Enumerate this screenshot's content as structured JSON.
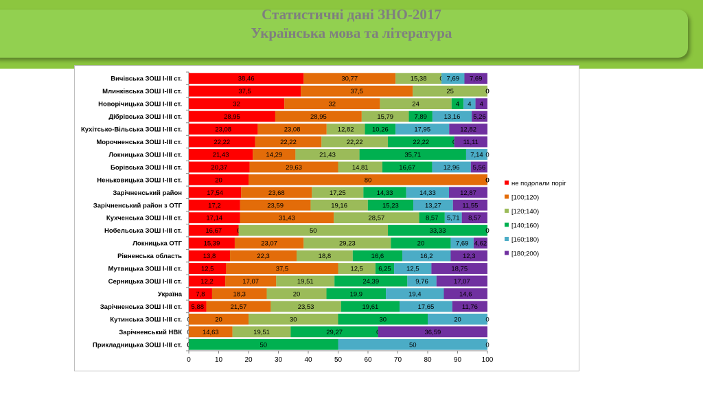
{
  "slide": {
    "title_line1": "Статистичні дані ЗНО-2017",
    "title_line2": "Українська мова та література"
  },
  "colors": [
    "#ff0000",
    "#e36c09",
    "#9bbb59",
    "#00b050",
    "#4bacc6",
    "#7030a0"
  ],
  "chart_data": {
    "type": "bar",
    "orientation": "horizontal",
    "stacked": true,
    "title": "",
    "xlabel": "",
    "ylabel": "",
    "xlim": [
      0,
      100
    ],
    "xticks": [
      "0",
      "10",
      "20",
      "30",
      "40",
      "50",
      "60",
      "70",
      "80",
      "90",
      "100"
    ],
    "legend_position": "right",
    "categories": [
      "Вичівська ЗОШ І-ІІІ ст.",
      "Млинківська ЗОШ І-ІІІ ст.",
      "Новорічицька ЗОШ І-ІІІ ст.",
      "Дібрівська ЗОШ І-ІІІ ст.",
      "Кухітсько-Вільська ЗОШ І-ІІІ ст.",
      "Морочненська ЗОШ І-ІІІ ст.",
      "Локницька ЗОШ І-ІІІ ст.",
      "Борівська ЗОШ І-ІІІ ст.",
      "Неньковицька ЗОШ І-ІІІ ст.",
      "Зарічненський район",
      "Зарічненський район з ОТГ",
      "Кухченська ЗОШ І-ІІІ ст.",
      "Нобельська ЗОШ І-ІІІ ст.",
      "Локницька ОТГ",
      "Рівненська область",
      "Мутвицька ЗОШ І-ІІІ ст.",
      "Серницька ЗОШ І-ІІІ ст.",
      "Україна",
      "Зарічненська ЗОШ І-ІІІ ст.",
      "Кутинська ЗОШ І-ІІІ ст.",
      "Зарічненський НВК",
      "Прикладницька ЗОШ І-ІІІ ст."
    ],
    "series": [
      {
        "name": "не подолали поріг",
        "values": [
          38.46,
          37.5,
          32,
          28.95,
          23.08,
          22.22,
          21.43,
          20.37,
          20,
          17.54,
          17.2,
          17.14,
          16.67,
          15.39,
          13.8,
          12.5,
          12.2,
          7.8,
          5.88,
          0,
          0,
          0
        ]
      },
      {
        "name": "[100;120)",
        "values": [
          30.77,
          37.5,
          32,
          28.95,
          23.08,
          22.22,
          14.29,
          29.63,
          80,
          23.68,
          23.59,
          31.43,
          0,
          23.07,
          22.3,
          37.5,
          17.07,
          18.3,
          21.57,
          20,
          14.63,
          0
        ]
      },
      {
        "name": "[120;140)",
        "values": [
          15.38,
          25,
          24,
          15.79,
          12.82,
          22.22,
          21.43,
          14.81,
          0,
          17.25,
          19.16,
          28.57,
          50,
          29.23,
          18.8,
          12.5,
          19.51,
          20,
          23.53,
          30,
          19.51,
          0
        ]
      },
      {
        "name": "[140;160)",
        "values": [
          0,
          0,
          4,
          7.89,
          10.26,
          22.22,
          35.71,
          16.67,
          0,
          14.33,
          15.23,
          8.57,
          33.33,
          20,
          16.6,
          6.25,
          24.39,
          19.9,
          19.61,
          30,
          29.27,
          50
        ]
      },
      {
        "name": "[160;180)",
        "values": [
          7.69,
          0,
          4,
          13.16,
          17.95,
          0,
          7.14,
          12.96,
          0,
          14.33,
          13.27,
          5.71,
          0,
          7.69,
          16.2,
          12.5,
          9.76,
          19.4,
          17.65,
          20,
          0,
          50
        ]
      },
      {
        "name": "[180;200)",
        "values": [
          7.69,
          0,
          4,
          5.26,
          12.82,
          11.11,
          0,
          5.56,
          0,
          12.87,
          11.55,
          8.57,
          0,
          4.62,
          12.3,
          18.75,
          17.07,
          14.6,
          11.76,
          0,
          36.59,
          0
        ]
      }
    ]
  }
}
